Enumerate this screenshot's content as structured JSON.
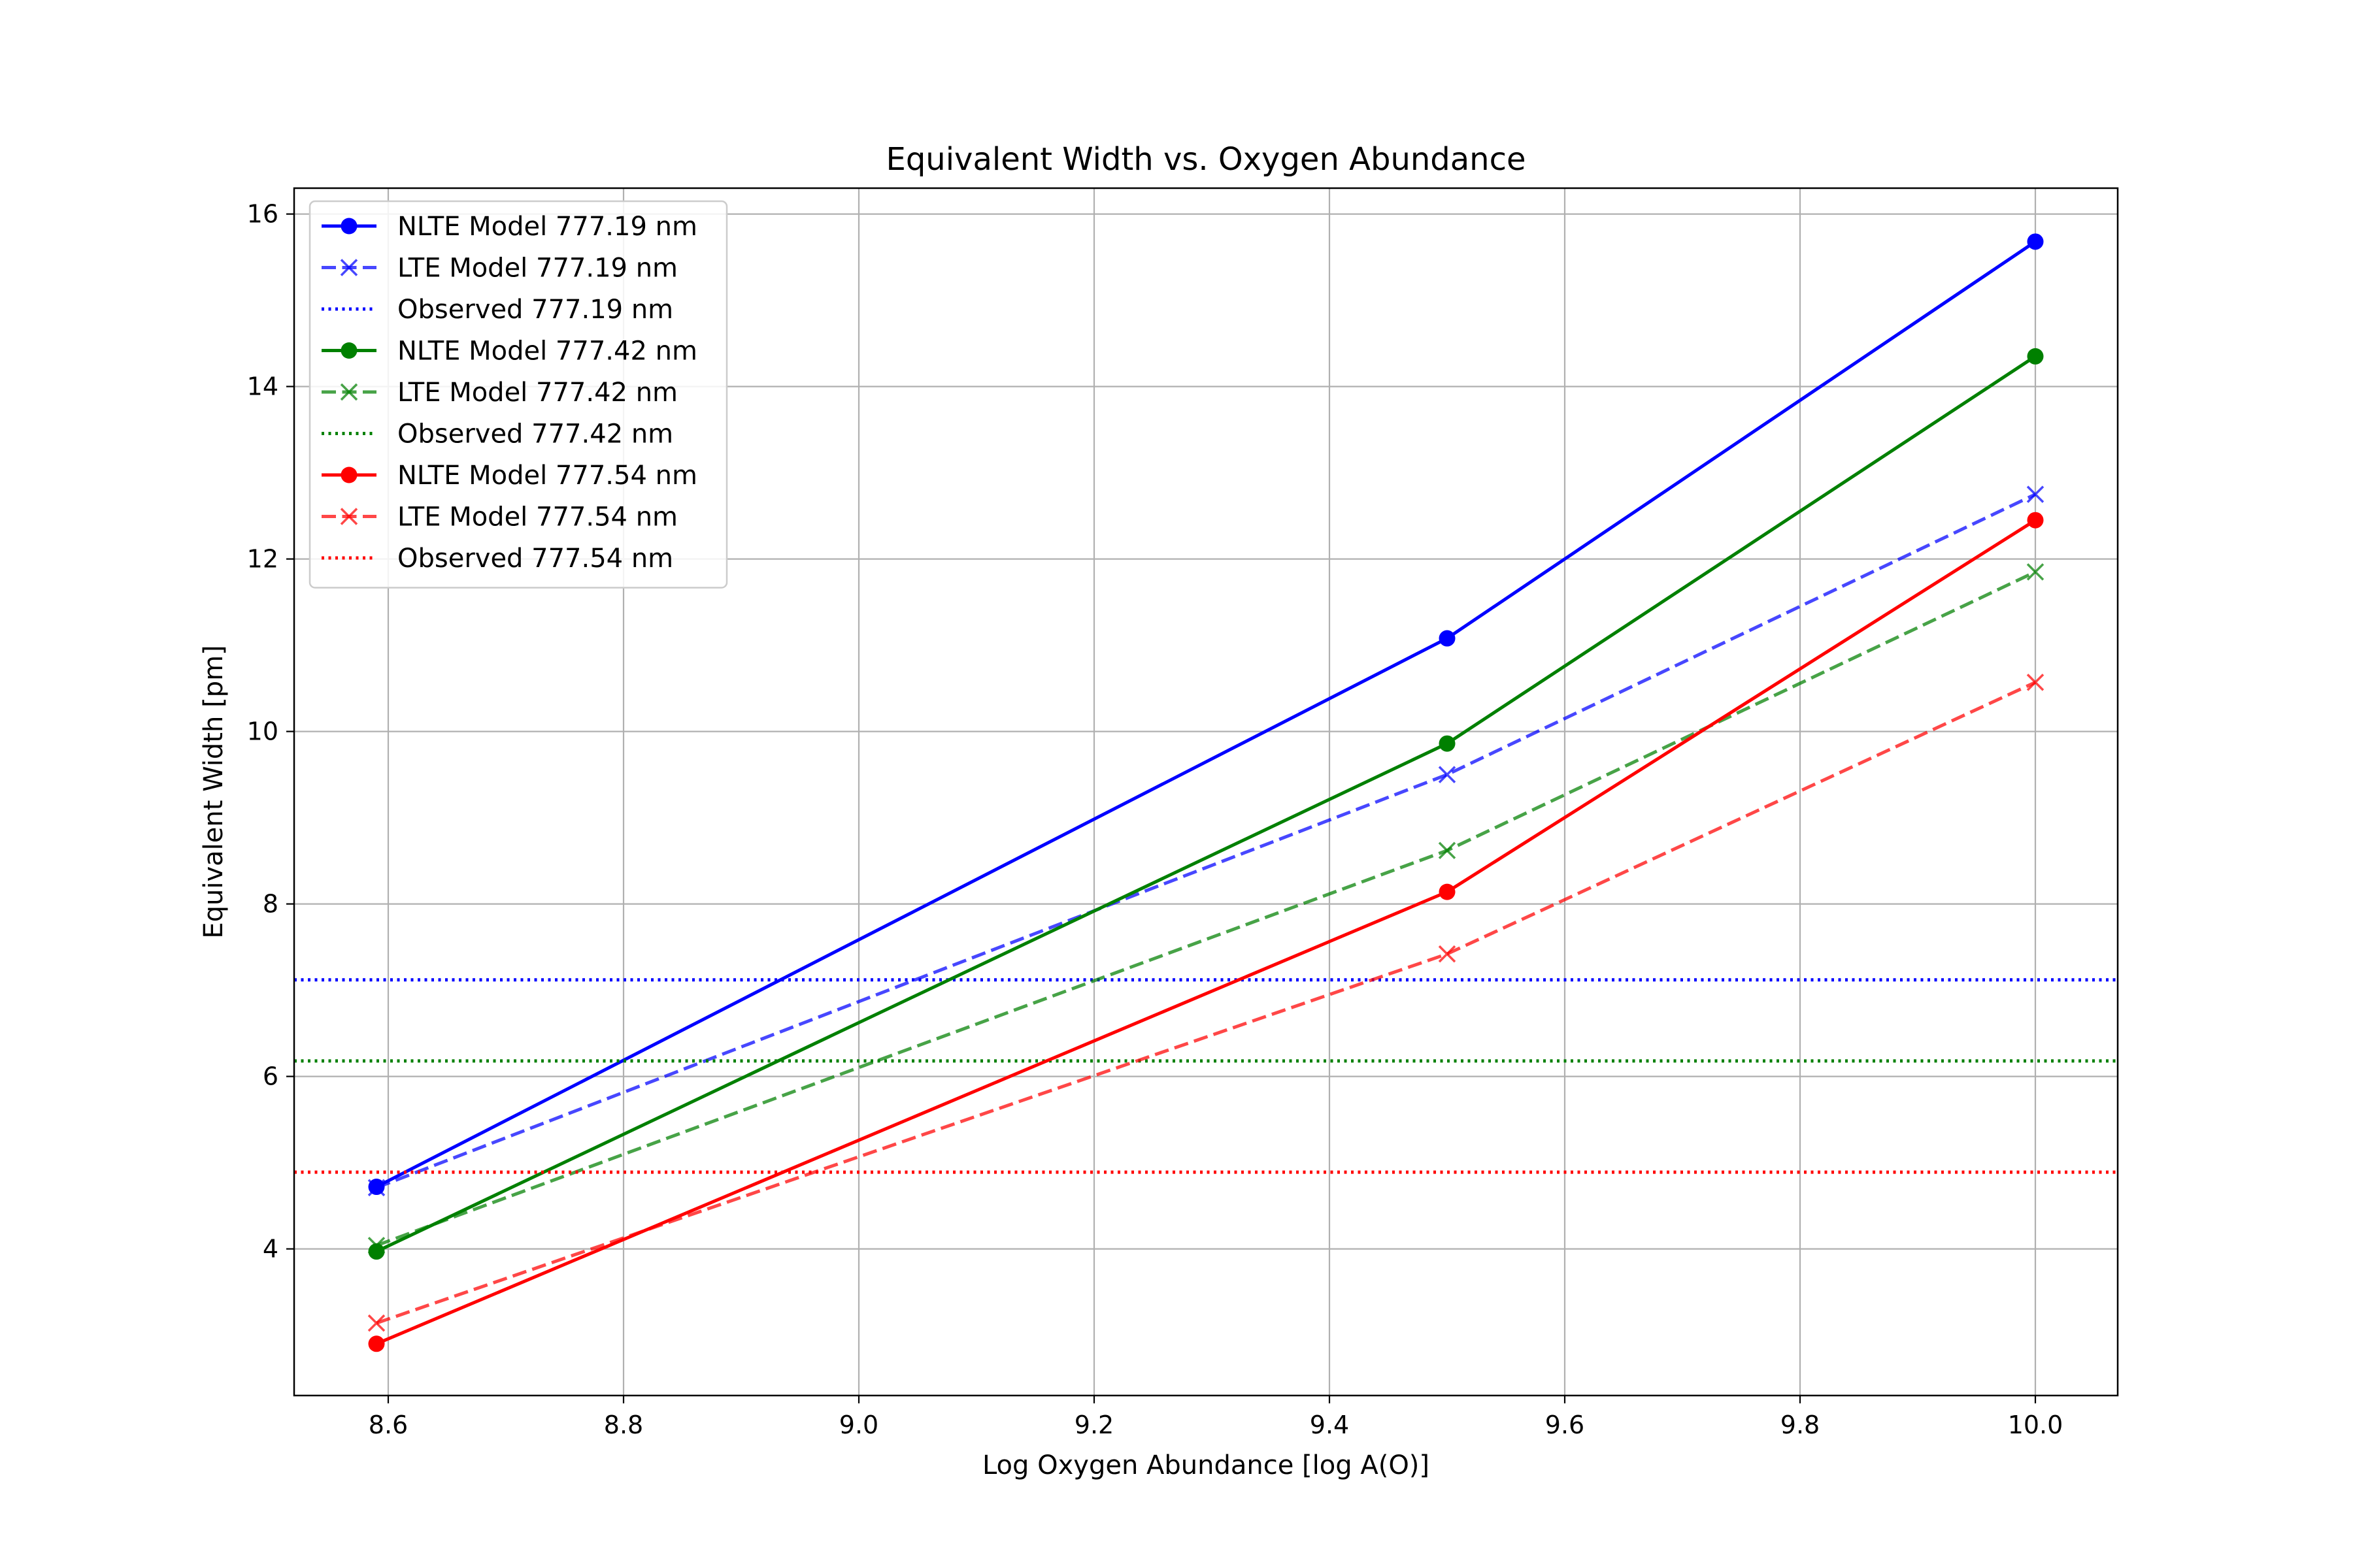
{
  "chart_data": {
    "type": "line",
    "title": "Equivalent Width vs. Oxygen Abundance",
    "xlabel": "Log Oxygen Abundance [log A(O)]",
    "ylabel": "Equivalent Width [pm]",
    "xlim": [
      8.52,
      10.07
    ],
    "ylim": [
      2.3,
      16.3
    ],
    "xticks": [
      8.6,
      8.8,
      9.0,
      9.2,
      9.4,
      9.6,
      9.8,
      10.0
    ],
    "xtick_labels": [
      "8.6",
      "8.8",
      "9.0",
      "9.2",
      "9.4",
      "9.6",
      "9.8",
      "10.0"
    ],
    "yticks": [
      4,
      6,
      8,
      10,
      12,
      14,
      16
    ],
    "ytick_labels": [
      "4",
      "6",
      "8",
      "10",
      "12",
      "14",
      "16"
    ],
    "grid": true,
    "legend_position": "top-left",
    "x": [
      8.59,
      9.5,
      10.0
    ],
    "series": [
      {
        "name": "NLTE Model 777.19 nm",
        "kind": "model",
        "values": [
          4.72,
          11.08,
          15.68
        ],
        "color": "#0000ff",
        "linestyle": "solid",
        "marker": "circle",
        "alpha": 1.0
      },
      {
        "name": "LTE Model 777.19 nm",
        "kind": "model",
        "values": [
          4.71,
          9.5,
          12.75
        ],
        "color": "#0000ff",
        "linestyle": "dashed",
        "marker": "x",
        "alpha": 0.72
      },
      {
        "name": "Observed 777.19 nm",
        "kind": "observed",
        "value": 7.12,
        "color": "#0000ff",
        "linestyle": "dotted",
        "marker": "none",
        "alpha": 1.0
      },
      {
        "name": "NLTE Model 777.42 nm",
        "kind": "model",
        "values": [
          3.97,
          9.86,
          14.35
        ],
        "color": "#008000",
        "linestyle": "solid",
        "marker": "circle",
        "alpha": 1.0
      },
      {
        "name": "LTE Model 777.42 nm",
        "kind": "model",
        "values": [
          4.04,
          8.62,
          11.85
        ],
        "color": "#008000",
        "linestyle": "dashed",
        "marker": "x",
        "alpha": 0.72
      },
      {
        "name": "Observed 777.42 nm",
        "kind": "observed",
        "value": 6.18,
        "color": "#008000",
        "linestyle": "dotted",
        "marker": "none",
        "alpha": 1.0
      },
      {
        "name": "NLTE Model 777.54 nm",
        "kind": "model",
        "values": [
          2.9,
          8.14,
          12.45
        ],
        "color": "#ff0000",
        "linestyle": "solid",
        "marker": "circle",
        "alpha": 1.0
      },
      {
        "name": "LTE Model 777.54 nm",
        "kind": "model",
        "values": [
          3.14,
          7.42,
          10.57
        ],
        "color": "#ff0000",
        "linestyle": "dashed",
        "marker": "x",
        "alpha": 0.72
      },
      {
        "name": "Observed 777.54 nm",
        "kind": "observed",
        "value": 4.89,
        "color": "#ff0000",
        "linestyle": "dotted",
        "marker": "none",
        "alpha": 1.0
      }
    ]
  }
}
